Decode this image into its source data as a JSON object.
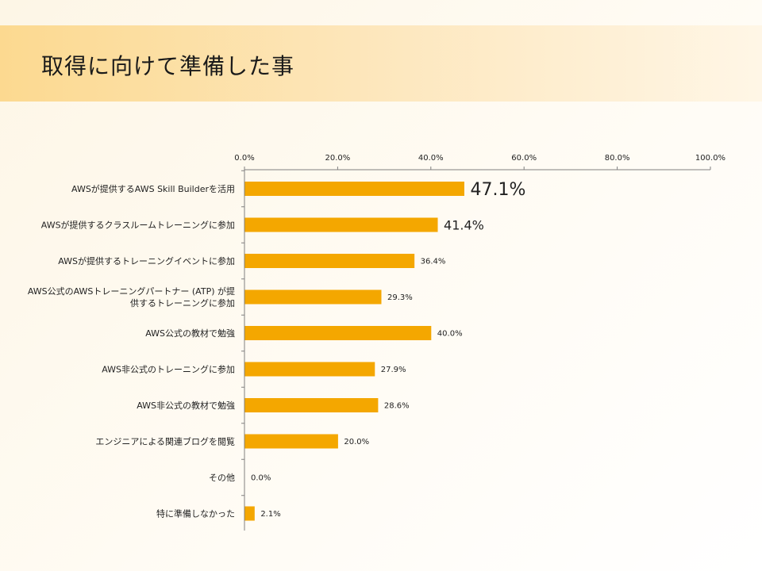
{
  "page": {
    "title": "取得に向けて準備した事"
  },
  "colors": {
    "bar": "#f4a700",
    "axis": "#808080",
    "banner_start": "#fcd990"
  },
  "chart_data": {
    "type": "bar",
    "orientation": "horizontal",
    "title": "",
    "xlabel": "",
    "ylabel": "",
    "xlim": [
      0,
      100
    ],
    "x_ticks": [
      "0.0%",
      "20.0%",
      "40.0%",
      "60.0%",
      "80.0%",
      "100.0%"
    ],
    "x_axis_position": "top",
    "grid": false,
    "legend": "none",
    "categories": [
      [
        "AWSが提供するAWS Skill Builderを活用"
      ],
      [
        "AWSが提供するクラスルームトレーニングに参加"
      ],
      [
        "AWSが提供するトレーニングイベントに参加"
      ],
      [
        "AWS公式のAWSトレーニングパートナー (ATP) が提",
        "供するトレーニングに参加"
      ],
      [
        "AWS公式の教材で勉強"
      ],
      [
        "AWS非公式のトレーニングに参加"
      ],
      [
        "AWS非公式の教材で勉強"
      ],
      [
        "エンジニアによる関連ブログを閲覧"
      ],
      [
        "その他"
      ],
      [
        "特に準備しなかった"
      ]
    ],
    "values": [
      47.1,
      41.4,
      36.4,
      29.3,
      40.0,
      27.9,
      28.6,
      20.0,
      0.0,
      2.1
    ],
    "data_labels": [
      "47.1%",
      "41.4%",
      "36.4%",
      "29.3%",
      "40.0%",
      "27.9%",
      "28.6%",
      "20.0%",
      "0.0%",
      "2.1%"
    ],
    "highlighted_labels": [
      0,
      1
    ]
  }
}
